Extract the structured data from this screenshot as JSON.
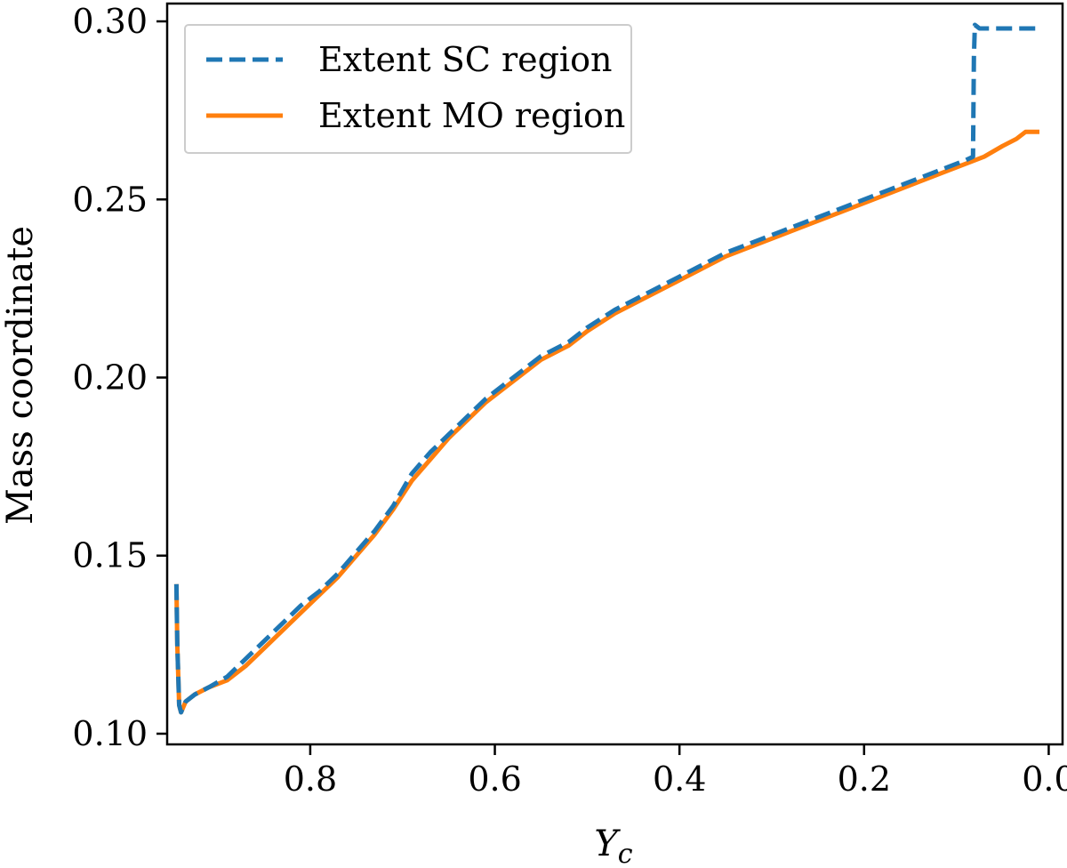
{
  "chart_data": {
    "type": "line",
    "title": "",
    "xlabel": "Y",
    "xlabel_subscript": "c",
    "ylabel": "Mass coordinate",
    "xlim": [
      0.955,
      -0.015
    ],
    "ylim": [
      0.097,
      0.305
    ],
    "x_inverted": true,
    "x_ticks": [
      0.8,
      0.6,
      0.4,
      0.2,
      0.0
    ],
    "x_tick_labels": [
      "0.8",
      "0.6",
      "0.4",
      "0.2",
      "0.0"
    ],
    "y_ticks": [
      0.1,
      0.15,
      0.2,
      0.25,
      0.3
    ],
    "y_tick_labels": [
      "0.10",
      "0.15",
      "0.20",
      "0.25",
      "0.30"
    ],
    "grid": false,
    "legend_position": "top-left",
    "series": [
      {
        "name": "Extent SC region",
        "color": "#1f77b4",
        "style": "dashed",
        "points": [
          [
            0.945,
            0.142
          ],
          [
            0.944,
            0.125
          ],
          [
            0.942,
            0.108
          ],
          [
            0.94,
            0.106
          ],
          [
            0.935,
            0.109
          ],
          [
            0.925,
            0.111
          ],
          [
            0.91,
            0.113
          ],
          [
            0.89,
            0.116
          ],
          [
            0.87,
            0.121
          ],
          [
            0.85,
            0.126
          ],
          [
            0.83,
            0.131
          ],
          [
            0.81,
            0.136
          ],
          [
            0.79,
            0.14
          ],
          [
            0.77,
            0.145
          ],
          [
            0.75,
            0.151
          ],
          [
            0.73,
            0.157
          ],
          [
            0.71,
            0.164
          ],
          [
            0.69,
            0.173
          ],
          [
            0.67,
            0.179
          ],
          [
            0.65,
            0.184
          ],
          [
            0.63,
            0.189
          ],
          [
            0.61,
            0.194
          ],
          [
            0.59,
            0.198
          ],
          [
            0.57,
            0.202
          ],
          [
            0.55,
            0.206
          ],
          [
            0.52,
            0.21
          ],
          [
            0.5,
            0.214
          ],
          [
            0.47,
            0.219
          ],
          [
            0.44,
            0.223
          ],
          [
            0.41,
            0.227
          ],
          [
            0.38,
            0.231
          ],
          [
            0.35,
            0.235
          ],
          [
            0.32,
            0.238
          ],
          [
            0.29,
            0.241
          ],
          [
            0.26,
            0.244
          ],
          [
            0.23,
            0.247
          ],
          [
            0.2,
            0.25
          ],
          [
            0.17,
            0.253
          ],
          [
            0.14,
            0.256
          ],
          [
            0.11,
            0.259
          ],
          [
            0.09,
            0.261
          ],
          [
            0.082,
            0.262
          ],
          [
            0.081,
            0.29
          ],
          [
            0.08,
            0.299
          ],
          [
            0.075,
            0.298
          ],
          [
            0.05,
            0.298
          ],
          [
            0.03,
            0.298
          ],
          [
            0.01,
            0.298
          ]
        ]
      },
      {
        "name": "Extent MO region",
        "color": "#ff7f0e",
        "style": "solid",
        "points": [
          [
            0.945,
            0.142
          ],
          [
            0.944,
            0.125
          ],
          [
            0.942,
            0.108
          ],
          [
            0.94,
            0.106
          ],
          [
            0.935,
            0.109
          ],
          [
            0.925,
            0.111
          ],
          [
            0.91,
            0.113
          ],
          [
            0.89,
            0.115
          ],
          [
            0.87,
            0.119
          ],
          [
            0.85,
            0.124
          ],
          [
            0.83,
            0.129
          ],
          [
            0.81,
            0.134
          ],
          [
            0.79,
            0.139
          ],
          [
            0.77,
            0.144
          ],
          [
            0.75,
            0.15
          ],
          [
            0.73,
            0.156
          ],
          [
            0.71,
            0.163
          ],
          [
            0.69,
            0.171
          ],
          [
            0.67,
            0.177
          ],
          [
            0.65,
            0.183
          ],
          [
            0.63,
            0.188
          ],
          [
            0.61,
            0.193
          ],
          [
            0.59,
            0.197
          ],
          [
            0.57,
            0.201
          ],
          [
            0.55,
            0.205
          ],
          [
            0.52,
            0.209
          ],
          [
            0.5,
            0.213
          ],
          [
            0.47,
            0.218
          ],
          [
            0.44,
            0.222
          ],
          [
            0.41,
            0.226
          ],
          [
            0.38,
            0.23
          ],
          [
            0.35,
            0.234
          ],
          [
            0.32,
            0.237
          ],
          [
            0.29,
            0.24
          ],
          [
            0.26,
            0.243
          ],
          [
            0.23,
            0.246
          ],
          [
            0.2,
            0.249
          ],
          [
            0.17,
            0.252
          ],
          [
            0.14,
            0.255
          ],
          [
            0.11,
            0.258
          ],
          [
            0.09,
            0.26
          ],
          [
            0.07,
            0.262
          ],
          [
            0.05,
            0.265
          ],
          [
            0.035,
            0.267
          ],
          [
            0.025,
            0.269
          ],
          [
            0.01,
            0.269
          ]
        ]
      }
    ]
  }
}
